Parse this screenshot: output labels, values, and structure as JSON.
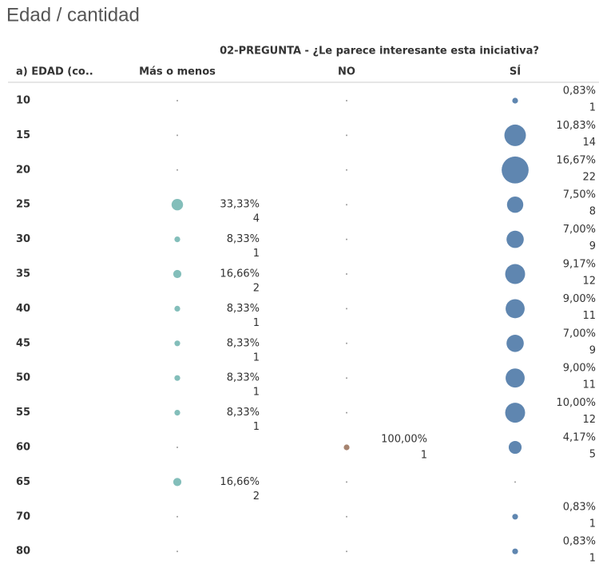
{
  "title": "Edad / cantidad",
  "header": "02-PREGUNTA - ¿Le parece interesante esta iniciativa?",
  "row_header": "a) EDAD (co..",
  "columns": [
    "Más o menos",
    "NO",
    "SÍ"
  ],
  "colors": [
    "#76b7b2",
    "#9c755f",
    "#4e79a7"
  ],
  "rows": [
    {
      "label": "10",
      "cells": [
        null,
        null,
        {
          "percent": "0,83%",
          "count": 1
        }
      ]
    },
    {
      "label": "15",
      "cells": [
        null,
        null,
        {
          "percent": "10,83%",
          "count": 14
        }
      ]
    },
    {
      "label": "20",
      "cells": [
        null,
        null,
        {
          "percent": "16,67%",
          "count": 22
        }
      ]
    },
    {
      "label": "25",
      "cells": [
        {
          "percent": "33,33%",
          "count": 4
        },
        null,
        {
          "percent": "7,50%",
          "count": 8
        }
      ]
    },
    {
      "label": "30",
      "cells": [
        {
          "percent": "8,33%",
          "count": 1
        },
        null,
        {
          "percent": "7,00%",
          "count": 9
        }
      ]
    },
    {
      "label": "35",
      "cells": [
        {
          "percent": "16,66%",
          "count": 2
        },
        null,
        {
          "percent": "9,17%",
          "count": 12
        }
      ]
    },
    {
      "label": "40",
      "cells": [
        {
          "percent": "8,33%",
          "count": 1
        },
        null,
        {
          "percent": "9,00%",
          "count": 11
        }
      ]
    },
    {
      "label": "45",
      "cells": [
        {
          "percent": "8,33%",
          "count": 1
        },
        null,
        {
          "percent": "7,00%",
          "count": 9
        }
      ]
    },
    {
      "label": "50",
      "cells": [
        {
          "percent": "8,33%",
          "count": 1
        },
        null,
        {
          "percent": "9,00%",
          "count": 11
        }
      ]
    },
    {
      "label": "55",
      "cells": [
        {
          "percent": "8,33%",
          "count": 1
        },
        null,
        {
          "percent": "10,00%",
          "count": 12
        }
      ]
    },
    {
      "label": "60",
      "cells": [
        null,
        {
          "percent": "100,00%",
          "count": 1
        },
        {
          "percent": "4,17%",
          "count": 5
        }
      ]
    },
    {
      "label": "65",
      "cells": [
        {
          "percent": "16,66%",
          "count": 2
        },
        null,
        null
      ]
    },
    {
      "label": "70",
      "cells": [
        null,
        null,
        {
          "percent": "0,83%",
          "count": 1
        }
      ]
    },
    {
      "label": "80",
      "cells": [
        null,
        null,
        {
          "percent": "0,83%",
          "count": 1
        }
      ]
    }
  ]
}
